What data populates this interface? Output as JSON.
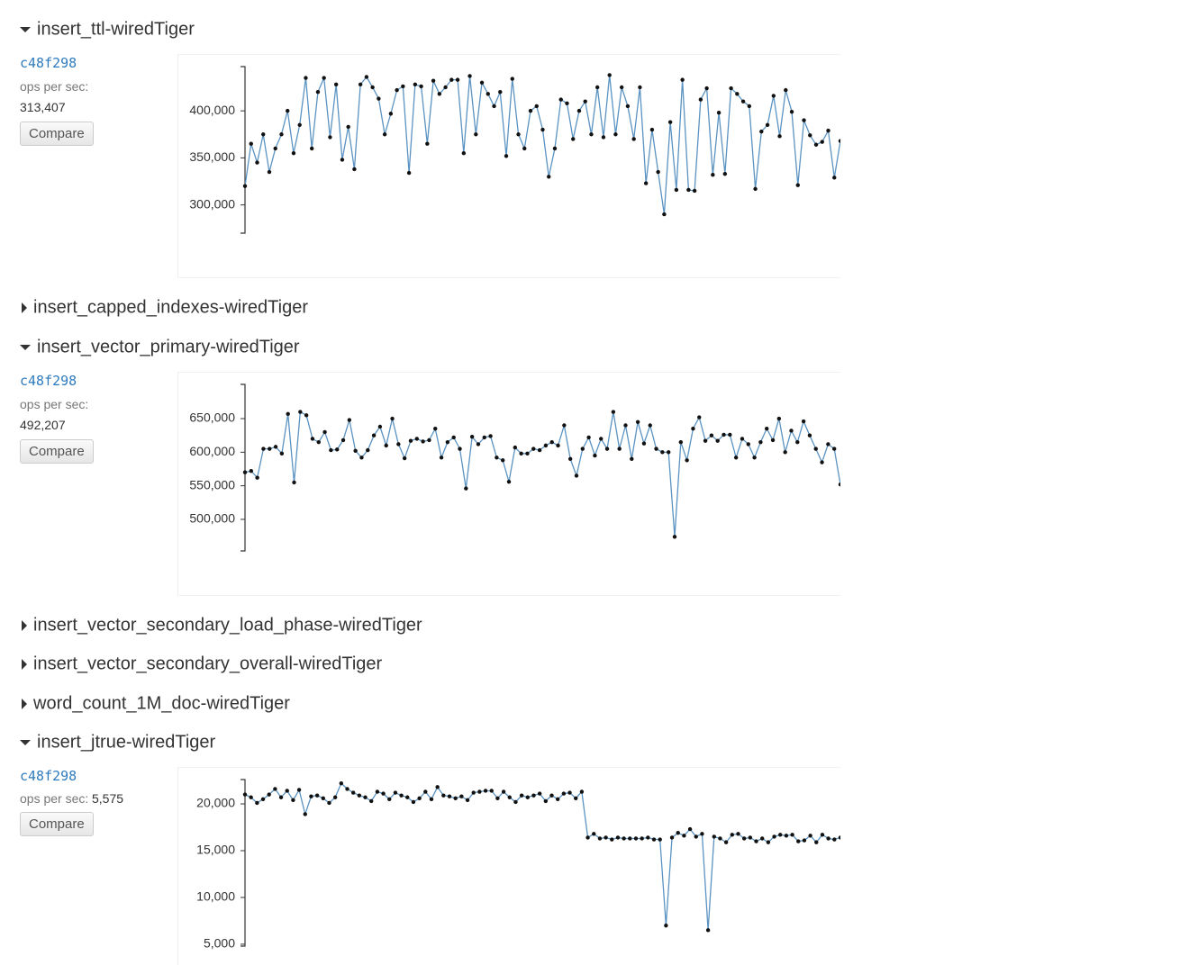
{
  "sections": [
    {
      "title": "insert_ttl-wiredTiger",
      "expanded": true,
      "commit": "c48f298",
      "metric_label": "ops per sec:",
      "metric_value": "313,407",
      "button": "Compare",
      "chart": {
        "type": "line",
        "color": "#5b93c2",
        "ylim": [
          270000,
          447000
        ],
        "yticks": [
          {
            "value": 300000,
            "label": "300,000"
          },
          {
            "value": 350000,
            "label": "350,000"
          },
          {
            "value": 400000,
            "label": "400,000"
          }
        ],
        "values": [
          320000,
          365000,
          345000,
          375000,
          335000,
          360000,
          375000,
          400000,
          355000,
          385000,
          435000,
          360000,
          420000,
          435000,
          372000,
          428000,
          348000,
          383000,
          338000,
          428000,
          436000,
          425000,
          413000,
          375000,
          397000,
          422000,
          426000,
          334000,
          428000,
          426000,
          365000,
          432000,
          418000,
          425000,
          433000,
          433000,
          355000,
          437000,
          375000,
          430000,
          418000,
          405000,
          420000,
          352000,
          434000,
          375000,
          360000,
          400000,
          405000,
          380000,
          330000,
          360000,
          412000,
          408000,
          370000,
          400000,
          410000,
          375000,
          425000,
          372000,
          438000,
          375000,
          425000,
          405000,
          370000,
          425000,
          323000,
          380000,
          335000,
          290000,
          388000,
          316000,
          433000,
          316000,
          315000,
          412000,
          424000,
          332000,
          398000,
          333000,
          424000,
          418000,
          410000,
          405000,
          317000,
          378000,
          385000,
          416000,
          373000,
          422000,
          399000,
          321000,
          390000,
          374000,
          364000,
          367000,
          379000,
          329000,
          368000
        ]
      }
    },
    {
      "title": "insert_capped_indexes-wiredTiger",
      "expanded": false
    },
    {
      "title": "insert_vector_primary-wiredTiger",
      "expanded": true,
      "commit": "c48f298",
      "metric_label": "ops per sec:",
      "metric_value": "492,207",
      "button": "Compare",
      "chart": {
        "type": "line",
        "color": "#5b93c2",
        "ylim": [
          453000,
          701000
        ],
        "yticks": [
          {
            "value": 500000,
            "label": "500,000"
          },
          {
            "value": 550000,
            "label": "550,000"
          },
          {
            "value": 600000,
            "label": "600,000"
          },
          {
            "value": 650000,
            "label": "650,000"
          }
        ],
        "values": [
          570000,
          572000,
          562000,
          605000,
          605000,
          608000,
          598000,
          657000,
          555000,
          660000,
          655000,
          620000,
          615000,
          630000,
          603000,
          604000,
          618000,
          648000,
          602000,
          592000,
          603000,
          625000,
          638000,
          610000,
          650000,
          612000,
          591000,
          617000,
          620000,
          616000,
          618000,
          635000,
          592000,
          615000,
          622000,
          605000,
          546000,
          623000,
          612000,
          622000,
          624000,
          592000,
          588000,
          556000,
          607000,
          598000,
          598000,
          605000,
          603000,
          610000,
          615000,
          610000,
          640000,
          590000,
          565000,
          605000,
          622000,
          595000,
          620000,
          605000,
          660000,
          605000,
          640000,
          590000,
          645000,
          613000,
          640000,
          605000,
          600000,
          600000,
          474000,
          615000,
          588000,
          635000,
          652000,
          617000,
          625000,
          617000,
          626000,
          626000,
          592000,
          620000,
          612000,
          592000,
          615000,
          635000,
          618000,
          650000,
          600000,
          632000,
          615000,
          646000,
          625000,
          605000,
          585000,
          612000,
          605000,
          552000
        ]
      }
    },
    {
      "title": "insert_vector_secondary_load_phase-wiredTiger",
      "expanded": false
    },
    {
      "title": "insert_vector_secondary_overall-wiredTiger",
      "expanded": false
    },
    {
      "title": "word_count_1M_doc-wiredTiger",
      "expanded": false
    },
    {
      "title": "insert_jtrue-wiredTiger",
      "expanded": true,
      "commit": "c48f298",
      "metric_label": "ops per sec:",
      "metric_value": "5,575",
      "button": "Compare",
      "chart": {
        "type": "line",
        "color": "#5b93c2",
        "ylim": [
          4800,
          22600
        ],
        "yticks": [
          {
            "value": 5000,
            "label": "5,000"
          },
          {
            "value": 10000,
            "label": "10,000"
          },
          {
            "value": 15000,
            "label": "15,000"
          },
          {
            "value": 20000,
            "label": "20,000"
          }
        ],
        "values": [
          21000,
          20700,
          20100,
          20500,
          21000,
          21600,
          20700,
          21400,
          20400,
          21500,
          18900,
          20800,
          20900,
          20600,
          20100,
          20700,
          22200,
          21600,
          21200,
          20900,
          20700,
          20300,
          21300,
          21100,
          20500,
          21200,
          20900,
          20700,
          20200,
          20600,
          21300,
          20500,
          21800,
          20900,
          20800,
          20600,
          20800,
          20400,
          21200,
          21300,
          21400,
          21400,
          20600,
          21300,
          20700,
          20200,
          20900,
          20700,
          20900,
          21100,
          20300,
          20900,
          20500,
          21100,
          21200,
          20600,
          21300,
          16400,
          16800,
          16300,
          16400,
          16200,
          16400,
          16300,
          16300,
          16300,
          16300,
          16400,
          16200,
          16200,
          7000,
          16400,
          16900,
          16600,
          17300,
          16500,
          16800,
          6500,
          16500,
          16300,
          15900,
          16700,
          16800,
          16300,
          16400,
          16000,
          16300,
          15900,
          16500,
          16700,
          16600,
          16700,
          16000,
          16100,
          16600,
          15900,
          16700,
          16300,
          16200,
          16400
        ]
      }
    }
  ]
}
